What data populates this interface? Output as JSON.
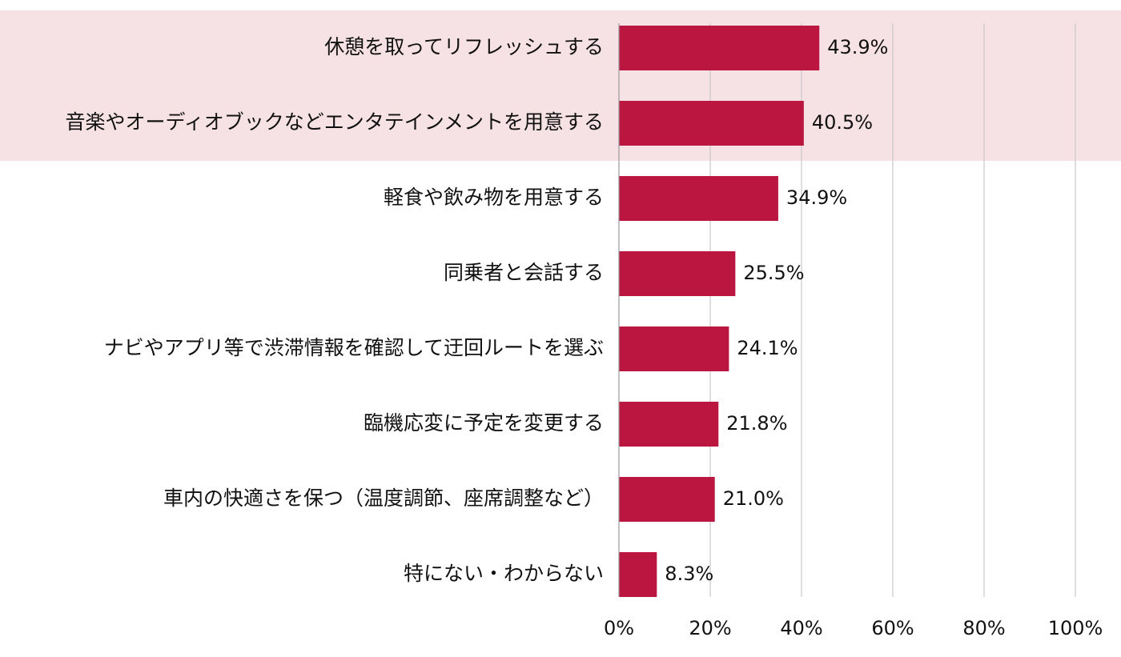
{
  "chart_data": {
    "type": "bar",
    "orientation": "horizontal",
    "categories": [
      "休憩を取ってリフレッシュする",
      "音楽やオーディオブックなどエンタテインメントを用意する",
      "軽食や飲み物を用意する",
      "同乗者と会話する",
      "ナビやアプリ等で渋滞情報を確認して迂回ルートを選ぶ",
      "臨機応変に予定を変更する",
      "車内の快適さを保つ（温度調節、座席調整など）",
      "特にない・わからない"
    ],
    "values": [
      43.9,
      40.5,
      34.9,
      25.5,
      24.1,
      21.8,
      21.0,
      8.3
    ],
    "value_labels": [
      "43.9%",
      "40.5%",
      "34.9%",
      "25.5%",
      "24.1%",
      "21.8%",
      "21.0%",
      "8.3%"
    ],
    "highlighted_categories": [
      0,
      1
    ],
    "xlim": [
      0,
      100
    ],
    "x_ticks": [
      0,
      20,
      40,
      60,
      80,
      100
    ],
    "x_tick_labels": [
      "0%",
      "20%",
      "40%",
      "60%",
      "80%",
      "100%"
    ],
    "grid": true,
    "legend": "none",
    "colors": {
      "bar": "#BA163F",
      "highlight_band": "#F6E1E5",
      "grid": "#C8C8C8",
      "axis": "#9A9A9A"
    }
  }
}
